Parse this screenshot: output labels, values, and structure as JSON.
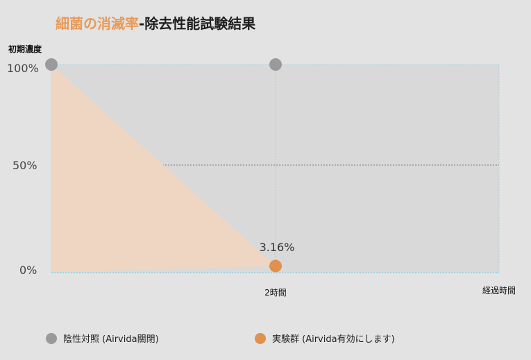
{
  "chart_data": {
    "type": "area",
    "title_part1": "細菌の消滅率",
    "title_part2": "-除去性能試験結果",
    "ylabel": "初期濃度",
    "xlabel": "経過時間",
    "x_tick_label": "2時間",
    "y_ticks": [
      "100%",
      "50%",
      "0%"
    ],
    "ylim": [
      0,
      100
    ],
    "x": [
      0,
      2
    ],
    "series": [
      {
        "name": "陰性対照 (Airvida關閉)",
        "color": "#9a9a9c",
        "values": [
          100,
          100
        ]
      },
      {
        "name": "実験群 (Airvida有効にします)",
        "color": "#e0914d",
        "values": [
          100,
          3.16
        ]
      }
    ],
    "data_labels": [
      "3.16%"
    ],
    "colors": {
      "area_fill": "#eed6c3",
      "plot_bg": "#d9d9d9",
      "gridline": "#9fd3e4",
      "title_accent": "#e89a58"
    }
  }
}
